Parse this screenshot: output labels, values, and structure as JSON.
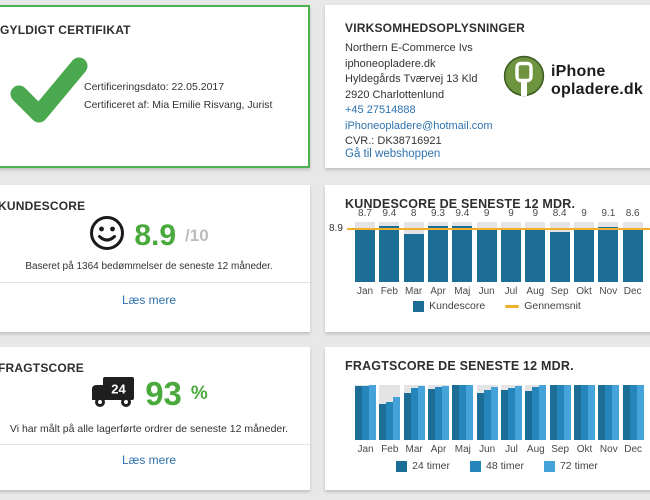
{
  "colors": {
    "accent_green": "#4aa94e",
    "cert_border_green": "#4caf50",
    "score_green": "#4aa93c",
    "link_blue": "#2d72ad",
    "bar_blue": "#1d6e96",
    "bar_blue_mid": "#2486bb",
    "bar_blue_light": "#45a3d9",
    "avg_orange": "#f0b02e"
  },
  "certificate": {
    "title": "GYLDIGT CERTIFIKAT",
    "date_line": "Certificeringsdato: 22.05.2017",
    "certified_by_line": "Certificeret af: Mia Emilie Risvang, Jurist"
  },
  "company": {
    "title": "VIRKSOMHEDSOPLYSNINGER",
    "name": "Northern E-Commerce Ivs",
    "domain": "iphoneopladere.dk",
    "street": "Hyldegårds Tværvej 13 Kld",
    "city": "2920 Charlottenlund",
    "phone": "+45 27514888",
    "email": "iPhoneopladere@hotmail.com",
    "cvr": "CVR.: DK38716921",
    "webshop_link": "Gå til webshoppen",
    "logo_line1": "iPhone",
    "logo_line2": "opladere.dk"
  },
  "kundescore": {
    "title": "KUNDESCORE",
    "score": "8.9",
    "scale": "/10",
    "caption": "Baseret på 1364 bedømmelser de seneste 12 måneder.",
    "link": "Læs mere"
  },
  "fragtscore": {
    "title": "FRAGTSCORE",
    "truck_badge": "24",
    "score": "93",
    "unit": "%",
    "caption": "Vi har målt på alle lagerførte ordrer de seneste 12 måneder.",
    "link": "Læs mere"
  },
  "chart_data": [
    {
      "type": "bar",
      "title": "KUNDESCORE DE SENESTE 12 MDR.",
      "categories": [
        "Jan",
        "Feb",
        "Mar",
        "Apr",
        "Maj",
        "Jun",
        "Jul",
        "Aug",
        "Sep",
        "Okt",
        "Nov",
        "Dec"
      ],
      "values": [
        8.7,
        9.4,
        8,
        9.3,
        9.4,
        9,
        9,
        9,
        8.4,
        9,
        9.1,
        8.6
      ],
      "average": 8.9,
      "ylim": [
        0,
        10
      ],
      "grid": false,
      "legend_position": "bottom",
      "legend": [
        {
          "label": "Kundescore",
          "swatch": "square",
          "color": "#1d6e96"
        },
        {
          "label": "Gennemsnit",
          "swatch": "line",
          "color": "#f0b02e"
        }
      ]
    },
    {
      "type": "bar",
      "title": "FRAGTSCORE DE SENESTE 12 MDR.",
      "categories": [
        "Jan",
        "Feb",
        "Mar",
        "Apr",
        "Maj",
        "Jun",
        "Jul",
        "Aug",
        "Sep",
        "Okt",
        "Nov",
        "Dec"
      ],
      "ylim": [
        0,
        100
      ],
      "grid": false,
      "legend_position": "bottom",
      "series": [
        {
          "name": "24 timer",
          "color": "#1d6e96",
          "values": [
            98,
            66,
            85,
            93,
            100,
            85,
            91,
            90,
            100,
            100,
            100,
            100
          ]
        },
        {
          "name": "48 timer",
          "color": "#2486bb",
          "values": [
            99,
            70,
            94,
            96,
            100,
            91,
            95,
            96,
            100,
            100,
            100,
            100
          ]
        },
        {
          "name": "72 timer",
          "color": "#45a3d9",
          "values": [
            100,
            79,
            98,
            99,
            100,
            97,
            99,
            100,
            100,
            100,
            100,
            100
          ]
        }
      ]
    }
  ]
}
